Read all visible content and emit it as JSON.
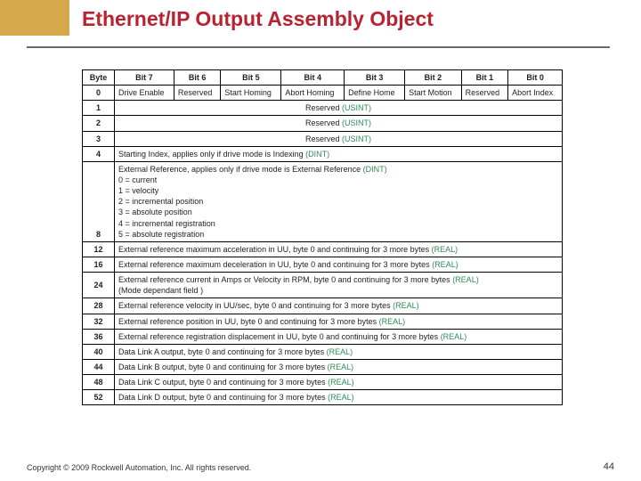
{
  "colors": {
    "gold": "#d4a84b",
    "titleRed": "#b8232f",
    "rule": "#6a6a6a",
    "border": "#000000",
    "text": "#222222",
    "type": "#2e8b57",
    "bg": "#ffffff"
  },
  "title": "Ethernet/IP Output Assembly Object",
  "footer": "Copyright © 2009 Rockwell Automation, Inc. All rights reserved.",
  "pageNumber": "44",
  "table": {
    "headers": [
      "Byte",
      "Bit 7",
      "Bit 6",
      "Bit 5",
      "Bit 4",
      "Bit 3",
      "Bit 2",
      "Bit 1",
      "Bit 0"
    ],
    "row0": {
      "byte": "0",
      "bits": [
        "Drive Enable",
        "Reserved",
        "Start Homing",
        "Abort Homing",
        "Define Home",
        "Start Motion",
        "Reserved",
        "Abort Index"
      ]
    },
    "reservedRows": [
      {
        "byte": "1",
        "text": "Reserved ",
        "type": "(USINT)"
      },
      {
        "byte": "2",
        "text": "Reserved ",
        "type": "(USINT)"
      },
      {
        "byte": "3",
        "text": "Reserved ",
        "type": "(USINT)"
      }
    ],
    "spanRows": [
      {
        "byte": "4",
        "lines": [
          {
            "t": "Starting Index, applies only if drive mode is Indexing ",
            "g": "(DINT)"
          }
        ]
      },
      {
        "byte": "",
        "lines": [
          {
            "t": "External Reference, applies only if drive mode is External Reference ",
            "g": "(DINT)"
          },
          {
            "t": "0 = current"
          },
          {
            "t": "1 = velocity"
          },
          {
            "t": "2 = incremental position"
          },
          {
            "t": "3 = absolute position"
          },
          {
            "t": "4 = incremental registration"
          },
          {
            "t": "5 = absolute registration"
          }
        ],
        "byteOverride": "8",
        "showByteAtEnd": true
      },
      {
        "byte": "12",
        "lines": [
          {
            "t": "External reference maximum acceleration in UU, byte 0 and continuing for 3 more bytes ",
            "g": "(REAL)"
          }
        ]
      },
      {
        "byte": "16",
        "lines": [
          {
            "t": "External reference maximum deceleration in UU, byte 0 and continuing for 3 more bytes ",
            "g": "(REAL)"
          }
        ]
      },
      {
        "byte": "24",
        "lines": [
          {
            "t": "External reference current in Amps or Velocity in RPM, byte 0 and continuing for 3 more bytes ",
            "g": "(REAL)"
          },
          {
            "t": "   (Mode dependant field )"
          }
        ]
      },
      {
        "byte": "28",
        "lines": [
          {
            "t": "External reference velocity in UU/sec, byte 0 and continuing for 3 more bytes ",
            "g": "(REAL)"
          }
        ]
      },
      {
        "byte": "32",
        "lines": [
          {
            "t": "External reference position in UU, byte 0 and continuing for 3 more bytes  ",
            "g": "(REAL)"
          }
        ]
      },
      {
        "byte": "36",
        "lines": [
          {
            "t": "External reference registration displacement in UU, byte 0 and continuing for 3 more bytes ",
            "g": "(REAL)"
          }
        ]
      },
      {
        "byte": "40",
        "lines": [
          {
            "t": "Data Link A output, byte 0 and continuing for 3 more bytes  ",
            "g": "(REAL)"
          }
        ]
      },
      {
        "byte": "44",
        "lines": [
          {
            "t": "Data Link B output, byte 0 and continuing for 3 more bytes  ",
            "g": "(REAL)"
          }
        ]
      },
      {
        "byte": "48",
        "lines": [
          {
            "t": "Data Link C output, byte 0 and continuing for 3 more bytes  ",
            "g": "(REAL)"
          }
        ]
      },
      {
        "byte": "52",
        "lines": [
          {
            "t": "Data Link D output, byte 0 and continuing for 3 more bytes  ",
            "g": "(REAL)"
          }
        ]
      }
    ]
  }
}
